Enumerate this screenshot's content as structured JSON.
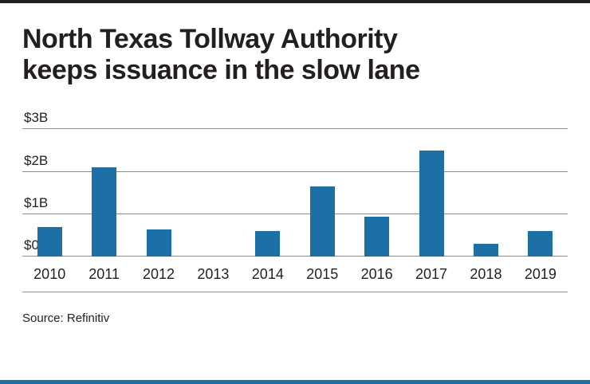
{
  "chart_data": {
    "type": "bar",
    "title": "North Texas Tollway Authority keeps issuance in the slow lane",
    "title_lines": [
      "North Texas Tollway Authority",
      "keeps issuance in the slow lane"
    ],
    "categories": [
      "2010",
      "2011",
      "2012",
      "2013",
      "2014",
      "2015",
      "2016",
      "2017",
      "2018",
      "2019"
    ],
    "values": [
      0.7,
      2.1,
      0.65,
      0,
      0.6,
      1.65,
      0.95,
      2.5,
      0.3,
      0.6
    ],
    "unit": "billions USD",
    "xlabel": "",
    "ylabel": "",
    "ylim": [
      0,
      3
    ],
    "yticks": [
      {
        "value": 0,
        "label": "$0"
      },
      {
        "value": 1,
        "label": "$1B"
      },
      {
        "value": 2,
        "label": "$2B"
      },
      {
        "value": 3,
        "label": "$3B"
      }
    ],
    "grid": "horizontal",
    "legend": "none",
    "bar_color": "#1d6fa8"
  },
  "footer": {
    "source": "Source: Refinitiv"
  },
  "colors": {
    "accent_blue": "#1d6fa8",
    "top_rule": "#231f20",
    "gridline": "#8c8c8c",
    "text": "#231f20"
  }
}
